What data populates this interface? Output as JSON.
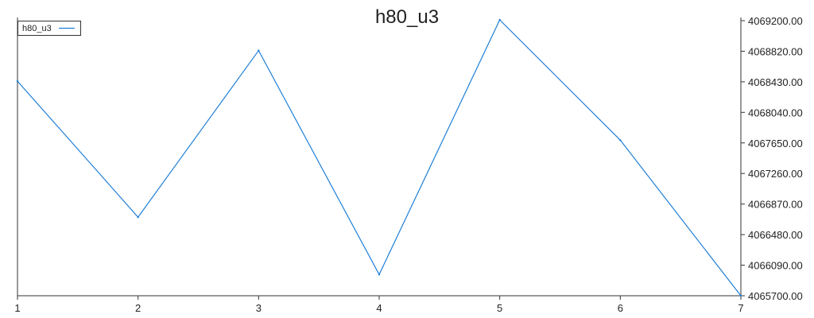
{
  "chart_data": {
    "type": "line",
    "title": "h80_u3",
    "x": [
      1,
      2,
      3,
      4,
      5,
      6,
      7
    ],
    "x_tick_labels": [
      "1",
      "2",
      "3",
      "4",
      "5",
      "6",
      "7"
    ],
    "y_tick_labels": [
      "4069200.00",
      "4068820.00",
      "4068430.00",
      "4068040.00",
      "4067650.00",
      "4067260.00",
      "4066870.00",
      "4066480.00",
      "4066090.00",
      "4065700.00"
    ],
    "ylim": [
      4065700,
      4069200
    ],
    "y_axis_side": "right",
    "grid": false,
    "legend_position": "top-left",
    "series": [
      {
        "name": "h80_u3",
        "color": "#1f7fd6",
        "values": [
          4068430,
          4066700,
          4068820,
          4065970,
          4069210,
          4067680,
          4065700
        ]
      }
    ]
  }
}
